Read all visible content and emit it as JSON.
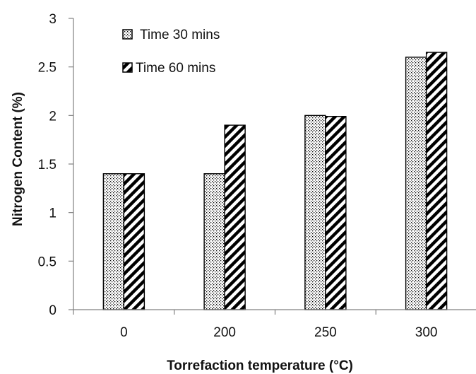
{
  "chart_data": {
    "type": "bar",
    "title": "",
    "xlabel": "Torrefaction temperature (°C)",
    "ylabel": "Nitrogen  Content  (%)",
    "categories": [
      "0",
      "200",
      "250",
      "300"
    ],
    "series": [
      {
        "name": "Time 30 mins",
        "values": [
          1.4,
          1.4,
          2.0,
          2.6
        ],
        "pattern": "dots"
      },
      {
        "name": "Time 60 mins",
        "values": [
          1.4,
          1.9,
          1.99,
          2.65
        ],
        "pattern": "hatch"
      }
    ],
    "ylim": [
      0,
      3
    ],
    "yticks": [
      "0",
      "0.5",
      "1",
      "1.5",
      "2",
      "2.5",
      "3"
    ],
    "grid": false,
    "legend_position": "top-left",
    "colors": {
      "bar_fill": "#ffffff",
      "bar_stroke": "#000000",
      "axis": "#808080"
    }
  }
}
